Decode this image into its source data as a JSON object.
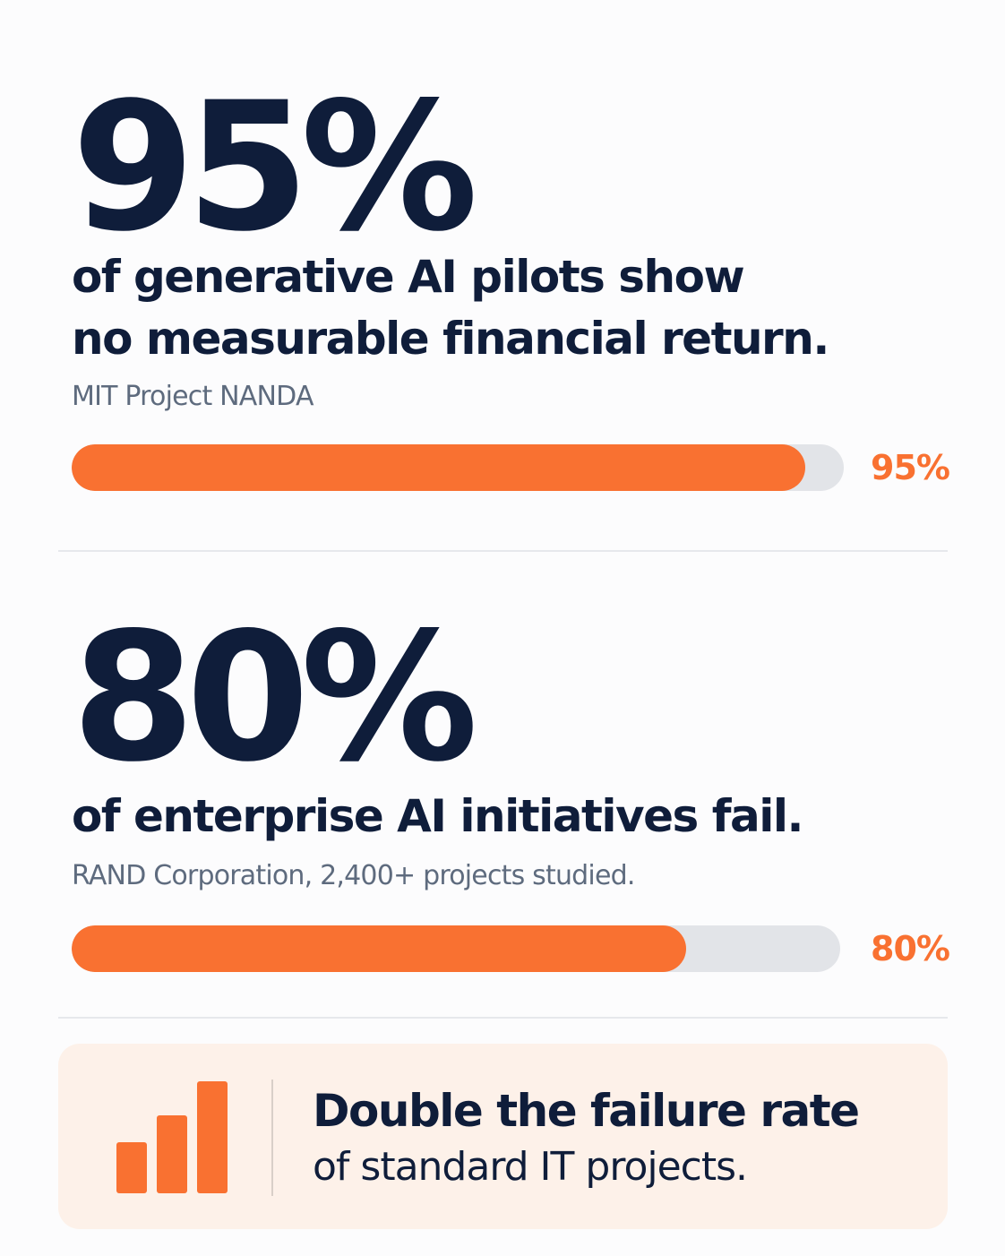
{
  "stats": [
    {
      "number": "95%",
      "headline_lines": [
        "of generative AI pilots show",
        "no measurable financial return."
      ],
      "source": "MIT Project NANDA",
      "progress_percent": 95,
      "progress_label": "95%"
    },
    {
      "number": "80%",
      "headline_lines": [
        "of enterprise AI initiatives fail."
      ],
      "source": "RAND Corporation, 2,400+ projects studied.",
      "progress_percent": 80,
      "progress_label": "80%"
    }
  ],
  "callout": {
    "icon": "bar-chart-icon",
    "title": "Double the failure rate",
    "subtitle": "of standard IT projects."
  },
  "colors": {
    "accent": "#f97131",
    "navy": "#0f1d3a",
    "track": "#e2e4e8",
    "muted": "#5e6b7e",
    "callout_bg": "#fdf1e9"
  }
}
